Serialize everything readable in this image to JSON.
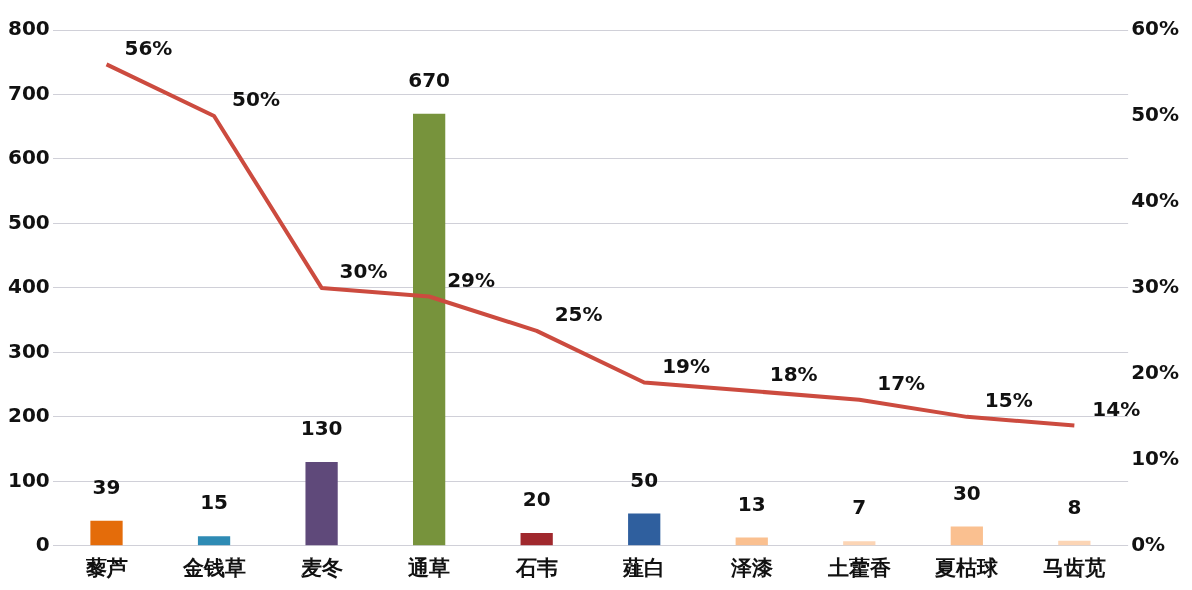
{
  "chart_data": {
    "type": "bar",
    "categories": [
      "藜芦",
      "金钱草",
      "麦冬",
      "通草",
      "石韦",
      "薤白",
      "泽漆",
      "土藿香",
      "夏枯球",
      "马齿苋"
    ],
    "series": [
      {
        "colors": [
          "#e46c0a",
          "#2e8bb4",
          "#5f497a",
          "#77933c",
          "#a0282d",
          "#2f5f9e",
          "#fac090",
          "#fcd5b5",
          "#fac090",
          "#fcd5b5"
        ],
        "values": [
          39,
          15,
          130,
          670,
          20,
          50,
          13,
          7,
          30,
          8
        ],
        "value_labels": [
          "39",
          "15",
          "130",
          "670",
          "20",
          "50",
          "13",
          "7",
          "30",
          "8"
        ]
      },
      {
        "type": "line",
        "axis": "y2",
        "color": "#cc4b3f",
        "values": [
          56,
          50,
          30,
          29,
          25,
          19,
          18,
          17,
          15,
          14
        ],
        "value_labels": [
          "56%",
          "50%",
          "30%",
          "29%",
          "25%",
          "19%",
          "18%",
          "17%",
          "15%",
          "14%"
        ]
      }
    ],
    "ylim": [
      0,
      800
    ],
    "yticks": [
      0,
      100,
      200,
      300,
      400,
      500,
      600,
      700,
      800
    ],
    "y2lim": [
      0,
      60
    ],
    "y2ticks": [
      {
        "value": 0,
        "label": "0%"
      },
      {
        "value": 10,
        "label": "10%"
      },
      {
        "value": 20,
        "label": "20%"
      },
      {
        "value": 30,
        "label": "30%"
      },
      {
        "value": 40,
        "label": "40%"
      },
      {
        "value": 50,
        "label": "50%"
      },
      {
        "value": 60,
        "label": "60%"
      }
    ],
    "grid": "y",
    "legend": false,
    "marker": "none"
  }
}
